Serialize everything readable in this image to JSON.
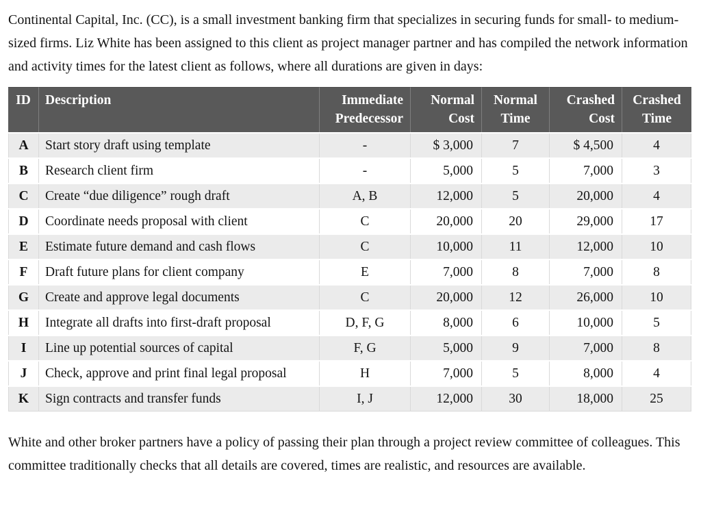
{
  "intro_paragraph": "Continental Capital, Inc. (CC), is a small investment banking firm that specializes in securing funds for small- to medium-sized firms. Liz White has been assigned to this client as project manager partner and has compiled the network information and activity times for the latest client as follows, where all durations are given in days:",
  "closing_paragraph": "White and other broker partners have a policy of passing their plan through a project review committee of colleagues. This committee traditionally checks that all details are covered, times are realistic, and resources are available.",
  "table": {
    "columns": [
      {
        "key": "id",
        "label": "ID"
      },
      {
        "key": "description",
        "label": "Description"
      },
      {
        "key": "predecessor",
        "label": "Immediate Predecessor"
      },
      {
        "key": "normal_cost",
        "label": "Normal Cost"
      },
      {
        "key": "normal_time",
        "label": "Normal Time"
      },
      {
        "key": "crashed_cost",
        "label": "Crashed Cost"
      },
      {
        "key": "crashed_time",
        "label": "Crashed Time"
      }
    ],
    "rows": [
      [
        "A",
        "Start story draft using template",
        "-",
        "$ 3,000",
        "7",
        "$ 4,500",
        "4"
      ],
      [
        "B",
        "Research client firm",
        "-",
        "5,000",
        "5",
        "7,000",
        "3"
      ],
      [
        "C",
        "Create “due diligence” rough draft",
        "A, B",
        "12,000",
        "5",
        "20,000",
        "4"
      ],
      [
        "D",
        "Coordinate needs proposal with client",
        "C",
        "20,000",
        "20",
        "29,000",
        "17"
      ],
      [
        "E",
        "Estimate future demand and cash flows",
        "C",
        "10,000",
        "11",
        "12,000",
        "10"
      ],
      [
        "F",
        "Draft future plans for client company",
        "E",
        "7,000",
        "8",
        "7,000",
        "8"
      ],
      [
        "G",
        "Create and approve legal documents",
        "C",
        "20,000",
        "12",
        "26,000",
        "10"
      ],
      [
        "H",
        "Integrate all drafts into first-draft proposal",
        "D, F, G",
        "8,000",
        "6",
        "10,000",
        "5"
      ],
      [
        "I",
        "Line up potential sources of capital",
        "F, G",
        "5,000",
        "9",
        "7,000",
        "8"
      ],
      [
        "J",
        "Check, approve and print final legal proposal",
        "H",
        "7,000",
        "5",
        "8,000",
        "4"
      ],
      [
        "K",
        "Sign contracts and transfer funds",
        "I, J",
        "12,000",
        "30",
        "18,000",
        "25"
      ]
    ]
  },
  "colors": {
    "header_bg": "#595959",
    "header_text": "#ffffff",
    "stripe_bg": "#ebebeb",
    "grid_line": "#d9d9d9",
    "header_divider": "#7f7f7f",
    "body_text": "#141414"
  }
}
